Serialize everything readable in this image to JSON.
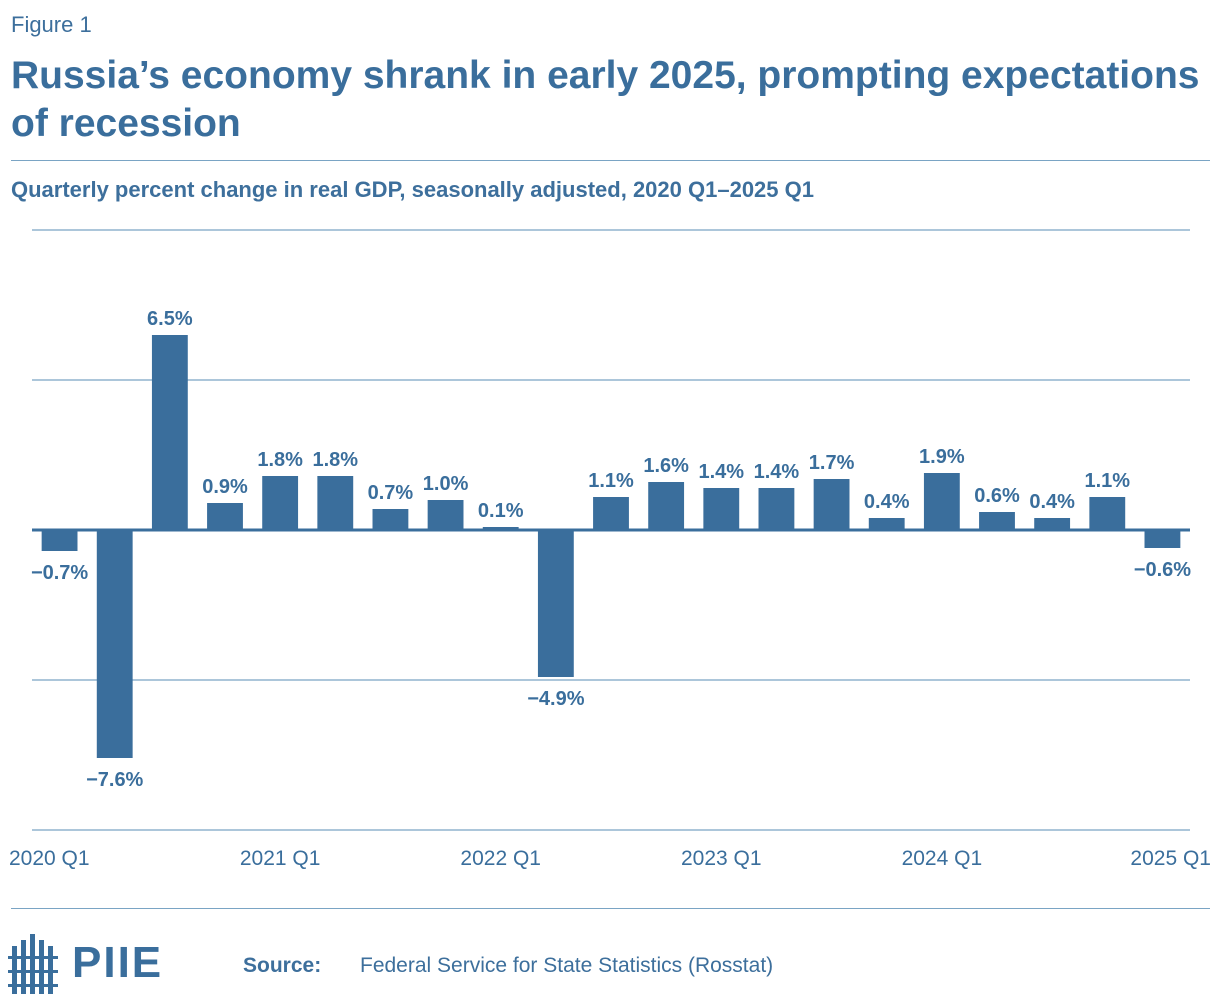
{
  "figure_label": "Figure 1",
  "title": "Russia’s economy shrank in early 2025, prompting expectations of recession",
  "subtitle": "Quarterly percent change in real GDP, seasonally adjusted, 2020 Q1–2025 Q1",
  "footer": {
    "logo_text": "PIIE",
    "source_label": "Source:",
    "source_text": "Federal Service for State Statistics (Rosstat)"
  },
  "colors": {
    "bar": "#3a6e9c",
    "text": "#3a6e9c",
    "grid": "#7aa4c4",
    "axis": "#3a6e9c"
  },
  "chart_data": {
    "type": "bar",
    "title": "Russia’s economy shrank in early 2025, prompting expectations of recession",
    "subtitle": "Quarterly percent change in real GDP, seasonally adjusted, 2020 Q1–2025 Q1",
    "xlabel": "",
    "ylabel": "",
    "categories": [
      "2020 Q1",
      "2020 Q2",
      "2020 Q3",
      "2020 Q4",
      "2021 Q1",
      "2021 Q2",
      "2021 Q3",
      "2021 Q4",
      "2022 Q1",
      "2022 Q2",
      "2022 Q3",
      "2022 Q4",
      "2023 Q1",
      "2023 Q2",
      "2023 Q3",
      "2023 Q4",
      "2024 Q1",
      "2024 Q2",
      "2024 Q3",
      "2024 Q4",
      "2025 Q1"
    ],
    "values": [
      -0.7,
      -7.6,
      6.5,
      0.9,
      1.8,
      1.8,
      0.7,
      1.0,
      0.1,
      -4.9,
      1.1,
      1.6,
      1.4,
      1.4,
      1.7,
      0.4,
      1.9,
      0.6,
      0.4,
      1.1,
      -0.6
    ],
    "data_labels": [
      "−0.7%",
      "−7.6%",
      "6.5%",
      "0.9%",
      "1.8%",
      "1.8%",
      "0.7%",
      "1.0%",
      "0.1%",
      "−4.9%",
      "1.1%",
      "1.6%",
      "1.4%",
      "1.4%",
      "1.7%",
      "0.4%",
      "1.9%",
      "0.6%",
      "0.4%",
      "1.1%",
      "−0.6%"
    ],
    "tick_labels": [
      "2020 Q1",
      "2021 Q1",
      "2022 Q1",
      "2023 Q1",
      "2024 Q1",
      "2025 Q1"
    ],
    "ylim": [
      -10,
      10
    ],
    "grid": true,
    "legend": "none"
  }
}
